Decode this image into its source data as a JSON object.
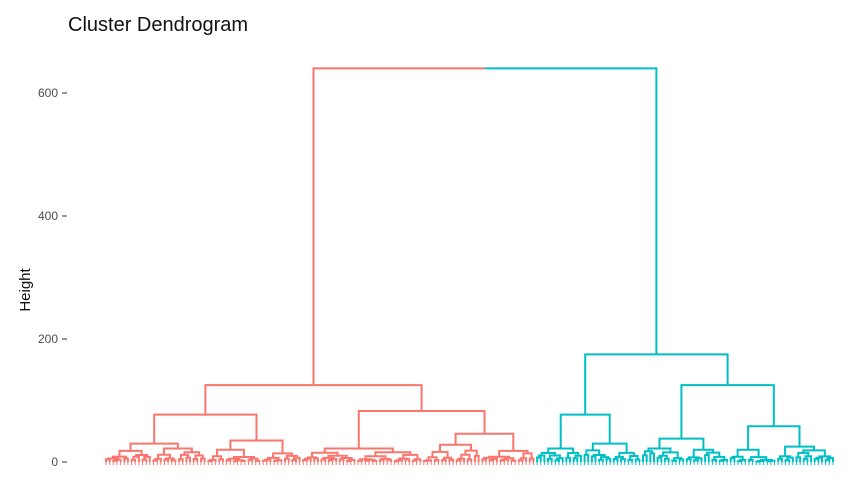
{
  "chart_data": {
    "type": "dendrogram",
    "title": "Cluster Dendrogram",
    "ylabel": "Height",
    "xlabel": "",
    "ylim": [
      0,
      650
    ],
    "yticks": [
      0,
      200,
      400,
      600
    ],
    "grid": false,
    "legend": "none",
    "leaf_count": 200,
    "clusters": [
      {
        "color": "#F8766D"
      },
      {
        "color": "#00BFC4"
      }
    ],
    "merge_heights": {
      "root": 640,
      "red_top": 125,
      "red_left": 77,
      "red_right": 83,
      "red_left_a": 30,
      "red_left_b": 35,
      "red_right_a": 22,
      "red_right_b": 46,
      "teal_top": 175,
      "teal_left": 77,
      "teal_right": 125,
      "teal_right_a": 38,
      "teal_right_b": 58
    }
  }
}
